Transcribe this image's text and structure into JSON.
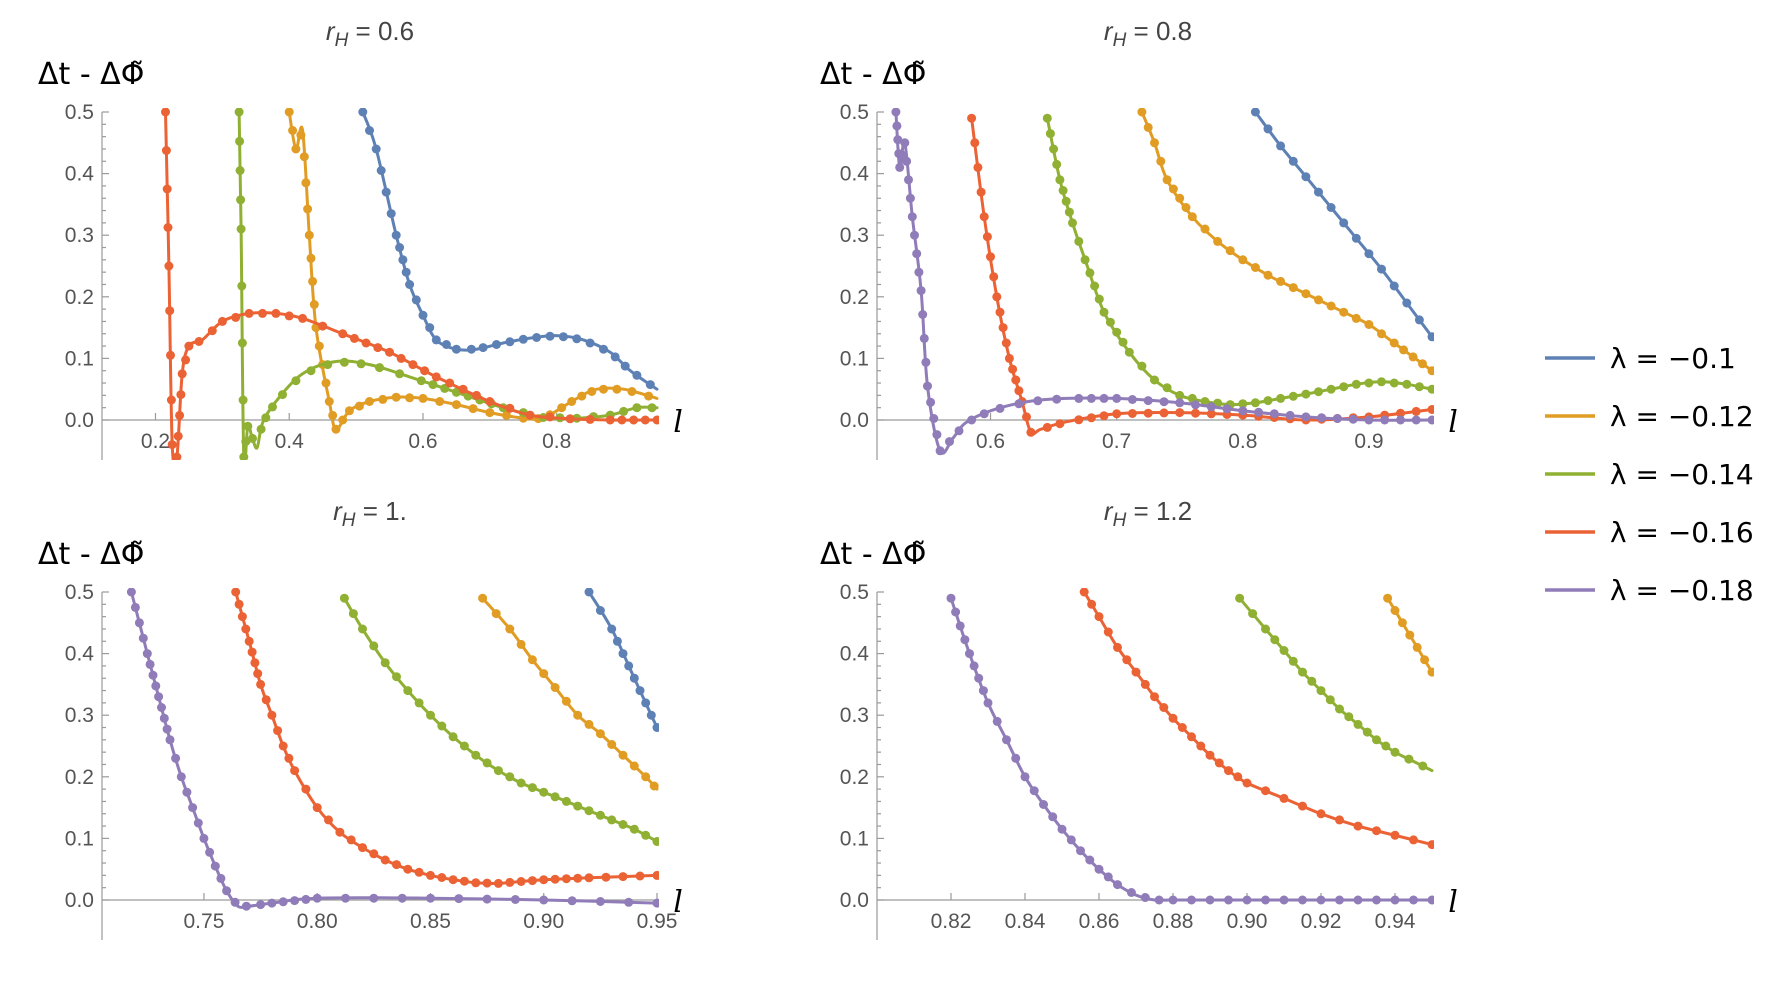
{
  "colors": {
    "axis": "#9a9a9a",
    "tick_text": "#555555",
    "title_text": "#444444"
  },
  "chart_data": [
    {
      "type": "line",
      "title": "r_H = 0.6",
      "title_parts": {
        "base": "r",
        "sub": "H",
        "rest": " = 0.6"
      },
      "ylabel": "Δt - ΔΦ̃",
      "xlabel": "l",
      "xlim": [
        0.12,
        0.95
      ],
      "ylim": [
        -0.065,
        0.5
      ],
      "xticks": [
        0.2,
        0.4,
        0.6,
        0.8
      ],
      "xtick_labels": [
        "0.2",
        "0.4",
        "0.6",
        "0.8"
      ],
      "yticks": [
        0.0,
        0.1,
        0.2,
        0.3,
        0.4,
        0.5
      ],
      "ytick_labels": [
        "0.0",
        "0.1",
        "0.2",
        "0.3",
        "0.4",
        "0.5"
      ],
      "markers": true,
      "series": [
        {
          "name": "λ = −0.1",
          "color": "#5e81b5",
          "x": [
            0.51,
            0.53,
            0.56,
            0.58,
            0.6,
            0.62,
            0.65,
            0.68,
            0.72,
            0.76,
            0.8,
            0.84,
            0.88,
            0.91,
            0.95
          ],
          "y": [
            0.5,
            0.44,
            0.3,
            0.22,
            0.17,
            0.13,
            0.115,
            0.115,
            0.125,
            0.133,
            0.137,
            0.13,
            0.11,
            0.08,
            0.05
          ]
        },
        {
          "name": "λ = −0.12",
          "color": "#e19c24",
          "x": [
            0.4,
            0.41,
            0.42,
            0.43,
            0.44,
            0.46,
            0.47,
            0.49,
            0.52,
            0.56,
            0.6,
            0.65,
            0.7,
            0.75,
            0.78,
            0.8,
            0.83,
            0.86,
            0.9,
            0.95
          ],
          "y": [
            0.5,
            0.44,
            0.47,
            0.3,
            0.15,
            0.03,
            -0.015,
            0.015,
            0.03,
            0.037,
            0.035,
            0.025,
            0.012,
            0.003,
            0.002,
            0.015,
            0.035,
            0.05,
            0.05,
            0.035
          ]
        },
        {
          "name": "λ = −0.14",
          "color": "#8fb032",
          "x": [
            0.325,
            0.328,
            0.332,
            0.338,
            0.345,
            0.352,
            0.36,
            0.38,
            0.42,
            0.47,
            0.52,
            0.58,
            0.65,
            0.72,
            0.78,
            0.83,
            0.88,
            0.92,
            0.95
          ],
          "y": [
            0.5,
            0.31,
            -0.06,
            -0.01,
            -0.03,
            -0.045,
            -0.005,
            0.03,
            0.075,
            0.095,
            0.09,
            0.07,
            0.045,
            0.02,
            0.004,
            0.003,
            0.008,
            0.02,
            0.02
          ]
        },
        {
          "name": "λ = −0.16",
          "color": "#eb6235",
          "x": [
            0.215,
            0.22,
            0.225,
            0.232,
            0.24,
            0.25,
            0.27,
            0.3,
            0.34,
            0.38,
            0.42,
            0.48,
            0.55,
            0.62,
            0.7,
            0.76,
            0.82,
            0.88,
            0.95
          ],
          "y": [
            0.5,
            0.25,
            -0.04,
            -0.06,
            0.075,
            0.12,
            0.13,
            0.16,
            0.173,
            0.173,
            0.165,
            0.14,
            0.11,
            0.07,
            0.03,
            0.008,
            0.002,
            0.0,
            0.0
          ]
        }
      ]
    },
    {
      "type": "line",
      "title": "r_H = 0.8",
      "title_parts": {
        "base": "r",
        "sub": "H",
        "rest": " = 0.8"
      },
      "ylabel": "Δt - ΔΦ̃",
      "xlabel": "l",
      "xlim": [
        0.51,
        0.95
      ],
      "ylim": [
        -0.065,
        0.5
      ],
      "xticks": [
        0.6,
        0.7,
        0.8,
        0.9
      ],
      "xtick_labels": [
        "0.6",
        "0.7",
        "0.8",
        "0.9"
      ],
      "yticks": [
        0.0,
        0.1,
        0.2,
        0.3,
        0.4,
        0.5
      ],
      "ytick_labels": [
        "0.0",
        "0.1",
        "0.2",
        "0.3",
        "0.4",
        "0.5"
      ],
      "markers": true,
      "series": [
        {
          "name": "λ = −0.1",
          "color": "#5e81b5",
          "x": [
            0.81,
            0.83,
            0.85,
            0.87,
            0.89,
            0.91,
            0.93,
            0.95
          ],
          "y": [
            0.5,
            0.445,
            0.395,
            0.345,
            0.295,
            0.245,
            0.19,
            0.135
          ]
        },
        {
          "name": "λ = −0.12",
          "color": "#e19c24",
          "x": [
            0.72,
            0.73,
            0.74,
            0.76,
            0.78,
            0.8,
            0.82,
            0.84,
            0.86,
            0.88,
            0.9,
            0.92,
            0.95
          ],
          "y": [
            0.5,
            0.45,
            0.39,
            0.33,
            0.29,
            0.26,
            0.235,
            0.215,
            0.195,
            0.175,
            0.155,
            0.125,
            0.08
          ]
        },
        {
          "name": "λ = −0.14",
          "color": "#8fb032",
          "x": [
            0.645,
            0.655,
            0.665,
            0.675,
            0.69,
            0.71,
            0.73,
            0.75,
            0.77,
            0.79,
            0.81,
            0.83,
            0.85,
            0.87,
            0.89,
            0.91,
            0.93,
            0.95
          ],
          "y": [
            0.49,
            0.39,
            0.32,
            0.26,
            0.175,
            0.11,
            0.065,
            0.04,
            0.03,
            0.025,
            0.028,
            0.035,
            0.042,
            0.05,
            0.058,
            0.062,
            0.058,
            0.05
          ]
        },
        {
          "name": "λ = −0.16",
          "color": "#eb6235",
          "x": [
            0.585,
            0.595,
            0.605,
            0.615,
            0.625,
            0.632,
            0.64,
            0.66,
            0.7,
            0.75,
            0.8,
            0.85,
            0.9,
            0.95
          ],
          "y": [
            0.49,
            0.33,
            0.2,
            0.1,
            0.03,
            -0.02,
            -0.015,
            -0.003,
            0.01,
            0.012,
            0.008,
            0.0,
            0.005,
            0.017
          ]
        },
        {
          "name": "λ = −0.18",
          "color": "#8f7cb8",
          "x": [
            0.525,
            0.528,
            0.532,
            0.538,
            0.545,
            0.55,
            0.56,
            0.57,
            0.58,
            0.6,
            0.63,
            0.66,
            0.7,
            0.75,
            0.8,
            0.85,
            0.9,
            0.95
          ],
          "y": [
            0.5,
            0.41,
            0.45,
            0.33,
            0.21,
            0.055,
            -0.05,
            -0.03,
            -0.005,
            0.015,
            0.03,
            0.035,
            0.035,
            0.028,
            0.015,
            0.005,
            0.0,
            0.0
          ]
        }
      ]
    },
    {
      "type": "line",
      "title": "r_H = 1.",
      "title_parts": {
        "base": "r",
        "sub": "H",
        "rest": " = 1."
      },
      "ylabel": "Δt - ΔΦ̃",
      "xlabel": "l",
      "xlim": [
        0.705,
        0.95
      ],
      "ylim": [
        -0.065,
        0.5
      ],
      "xticks": [
        0.75,
        0.8,
        0.85,
        0.9,
        0.95
      ],
      "xtick_labels": [
        "0.75",
        "0.80",
        "0.85",
        "0.90",
        "0.95"
      ],
      "yticks": [
        0.0,
        0.1,
        0.2,
        0.3,
        0.4,
        0.5
      ],
      "ytick_labels": [
        "0.0",
        "0.1",
        "0.2",
        "0.3",
        "0.4",
        "0.5"
      ],
      "markers": true,
      "series": [
        {
          "name": "λ = −0.1",
          "color": "#5e81b5",
          "x": [
            0.92,
            0.93,
            0.94,
            0.95
          ],
          "y": [
            0.5,
            0.44,
            0.36,
            0.28
          ]
        },
        {
          "name": "λ = −0.12",
          "color": "#e19c24",
          "x": [
            0.873,
            0.885,
            0.895,
            0.905,
            0.915,
            0.925,
            0.935,
            0.945,
            0.95
          ],
          "y": [
            0.49,
            0.44,
            0.39,
            0.345,
            0.3,
            0.27,
            0.235,
            0.2,
            0.18
          ]
        },
        {
          "name": "λ = −0.14",
          "color": "#8fb032",
          "x": [
            0.812,
            0.82,
            0.83,
            0.84,
            0.85,
            0.86,
            0.87,
            0.88,
            0.89,
            0.9,
            0.91,
            0.92,
            0.93,
            0.94,
            0.95
          ],
          "y": [
            0.49,
            0.44,
            0.385,
            0.34,
            0.3,
            0.265,
            0.235,
            0.21,
            0.19,
            0.175,
            0.16,
            0.145,
            0.13,
            0.115,
            0.095
          ]
        },
        {
          "name": "λ = −0.16",
          "color": "#eb6235",
          "x": [
            0.764,
            0.77,
            0.775,
            0.78,
            0.785,
            0.79,
            0.8,
            0.81,
            0.82,
            0.83,
            0.84,
            0.85,
            0.86,
            0.87,
            0.88,
            0.89,
            0.9,
            0.92,
            0.95
          ],
          "y": [
            0.5,
            0.42,
            0.35,
            0.3,
            0.25,
            0.21,
            0.15,
            0.11,
            0.085,
            0.065,
            0.05,
            0.04,
            0.033,
            0.028,
            0.027,
            0.03,
            0.033,
            0.036,
            0.04
          ]
        },
        {
          "name": "λ = −0.18",
          "color": "#8f7cb8",
          "x": [
            0.718,
            0.725,
            0.73,
            0.735,
            0.74,
            0.745,
            0.75,
            0.755,
            0.76,
            0.765,
            0.77,
            0.78,
            0.8,
            0.85,
            0.9,
            0.95
          ],
          "y": [
            0.5,
            0.4,
            0.33,
            0.26,
            0.2,
            0.15,
            0.1,
            0.055,
            0.015,
            -0.01,
            -0.01,
            -0.005,
            0.003,
            0.003,
            0.0,
            -0.005
          ]
        }
      ]
    },
    {
      "type": "line",
      "title": "r_H = 1.2",
      "title_parts": {
        "base": "r",
        "sub": "H",
        "rest": " = 1.2"
      },
      "ylabel": "Δt - ΔΦ̃",
      "xlabel": "l",
      "xlim": [
        0.8,
        0.95
      ],
      "ylim": [
        -0.065,
        0.5
      ],
      "xticks": [
        0.82,
        0.84,
        0.86,
        0.88,
        0.9,
        0.92,
        0.94
      ],
      "xtick_labels": [
        "0.82",
        "0.84",
        "0.86",
        "0.88",
        "0.90",
        "0.92",
        "0.94"
      ],
      "yticks": [
        0.0,
        0.1,
        0.2,
        0.3,
        0.4,
        0.5
      ],
      "ytick_labels": [
        "0.0",
        "0.1",
        "0.2",
        "0.3",
        "0.4",
        "0.5"
      ],
      "markers": true,
      "series": [
        {
          "name": "λ = −0.12",
          "color": "#e19c24",
          "x": [
            0.938,
            0.942,
            0.946,
            0.95
          ],
          "y": [
            0.49,
            0.45,
            0.41,
            0.37
          ]
        },
        {
          "name": "λ = −0.14",
          "color": "#8fb032",
          "x": [
            0.898,
            0.905,
            0.91,
            0.915,
            0.92,
            0.925,
            0.93,
            0.935,
            0.94,
            0.945,
            0.95
          ],
          "y": [
            0.49,
            0.44,
            0.405,
            0.37,
            0.34,
            0.31,
            0.285,
            0.26,
            0.24,
            0.225,
            0.21
          ]
        },
        {
          "name": "λ = −0.16",
          "color": "#eb6235",
          "x": [
            0.856,
            0.86,
            0.865,
            0.87,
            0.875,
            0.88,
            0.885,
            0.89,
            0.895,
            0.9,
            0.91,
            0.92,
            0.93,
            0.94,
            0.95
          ],
          "y": [
            0.5,
            0.46,
            0.41,
            0.37,
            0.33,
            0.295,
            0.265,
            0.235,
            0.21,
            0.19,
            0.165,
            0.14,
            0.12,
            0.105,
            0.09
          ]
        },
        {
          "name": "λ = −0.18",
          "color": "#8f7cb8",
          "x": [
            0.82,
            0.825,
            0.83,
            0.835,
            0.84,
            0.845,
            0.85,
            0.855,
            0.86,
            0.865,
            0.87,
            0.875,
            0.88,
            0.9,
            0.92,
            0.94,
            0.95
          ],
          "y": [
            0.49,
            0.4,
            0.32,
            0.26,
            0.2,
            0.155,
            0.115,
            0.08,
            0.05,
            0.025,
            0.008,
            0.0,
            0.0,
            0.0,
            0.0,
            0.0,
            0.0
          ]
        }
      ]
    }
  ],
  "legend": {
    "placement": "right",
    "entries": [
      {
        "label": "λ = −0.1",
        "color": "#5e81b5"
      },
      {
        "label": "λ = −0.12",
        "color": "#e19c24"
      },
      {
        "label": "λ = −0.14",
        "color": "#8fb032"
      },
      {
        "label": "λ = −0.16",
        "color": "#eb6235"
      },
      {
        "label": "λ = −0.18",
        "color": "#8f7cb8"
      }
    ]
  }
}
